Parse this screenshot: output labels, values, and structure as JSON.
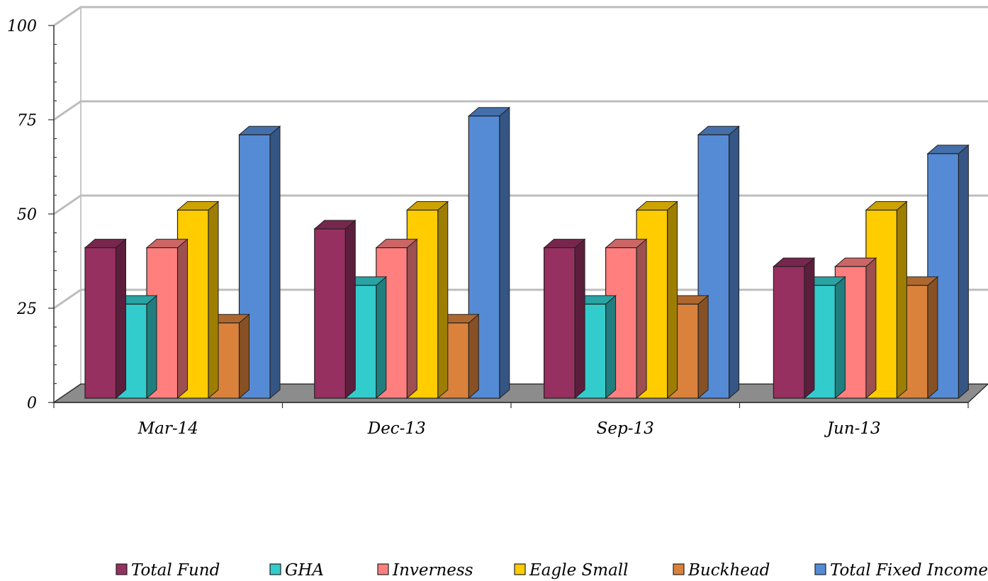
{
  "chart_data": {
    "type": "bar",
    "style": "3d-clustered-column",
    "categories": [
      "Mar-14",
      "Dec-13",
      "Sep-13",
      "Jun-13"
    ],
    "series": [
      {
        "name": "Total Fund",
        "color": "#953060",
        "values": [
          40,
          45,
          40,
          35
        ]
      },
      {
        "name": "GHA",
        "color": "#33CCCC",
        "values": [
          25,
          30,
          25,
          30
        ]
      },
      {
        "name": "Inverness",
        "color": "#FF7F7F",
        "values": [
          40,
          40,
          40,
          35
        ]
      },
      {
        "name": "Eagle Small",
        "color": "#FFCC00",
        "values": [
          50,
          50,
          50,
          50
        ]
      },
      {
        "name": "Buckhead",
        "color": "#DA823B",
        "values": [
          20,
          20,
          25,
          30
        ]
      },
      {
        "name": "Total Fixed Income",
        "color": "#558BD5",
        "values": [
          70,
          75,
          70,
          65
        ]
      }
    ],
    "ylim": [
      0,
      100
    ],
    "yticks": [
      "0",
      "25",
      "50",
      "75",
      "100"
    ],
    "grid": true,
    "legend_position": "bottom"
  }
}
